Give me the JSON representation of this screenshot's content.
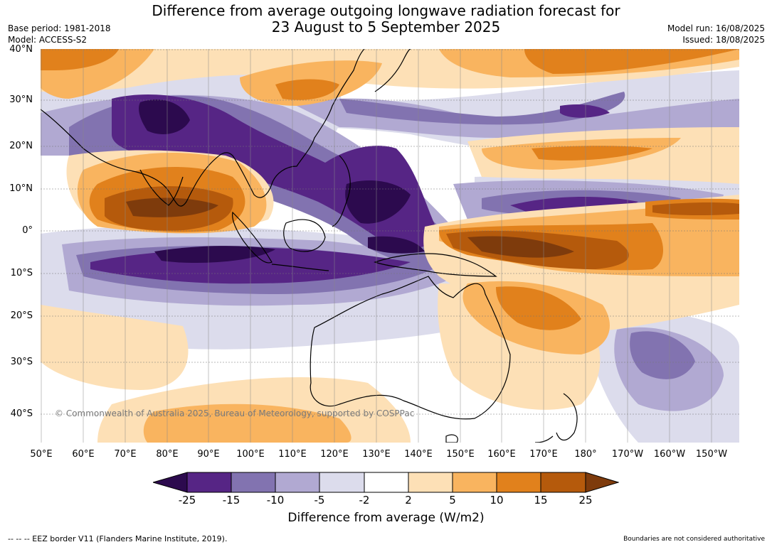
{
  "title_line1": "Difference from average outgoing longwave radiation forecast for",
  "title_line2": "23 August to 5 September 2025",
  "base_period": "Base period: 1981-2018",
  "model": "Model: ACCESS-S2",
  "model_run": "Model run: 16/08/2025",
  "issued": "Issued: 18/08/2025",
  "lat_labels": [
    "40°N",
    "30°N",
    "20°N",
    "10°N",
    "0°",
    "10°S",
    "20°S",
    "30°S",
    "40°S"
  ],
  "lon_labels": [
    "50°E",
    "60°E",
    "70°E",
    "80°E",
    "90°E",
    "100°E",
    "110°E",
    "120°E",
    "130°E",
    "140°E",
    "150°E",
    "160°E",
    "170°E",
    "180°",
    "170°W",
    "160°W",
    "150°W"
  ],
  "copyright": "© Commonwealth of Australia 2025, Bureau of Meteorology, supported by COSPPac",
  "colorbar": {
    "ticks": [
      "-25",
      "-15",
      "-10",
      "-5",
      "-2",
      "2",
      "5",
      "10",
      "15",
      "25"
    ],
    "colors": [
      "#2c0a4e",
      "#562585",
      "#8273b0",
      "#b1a9d2",
      "#dcdcec",
      "#ffffff",
      "#fde0b6",
      "#f9b45f",
      "#e1811c",
      "#b55a0c",
      "#7e3b0c"
    ],
    "label": "Difference from average (W/m2)"
  },
  "footer_left": "--  --  -- EEZ border V11 (Flanders Marine Institute, 2019).",
  "footer_right": "Boundaries are not considered authoritative"
}
